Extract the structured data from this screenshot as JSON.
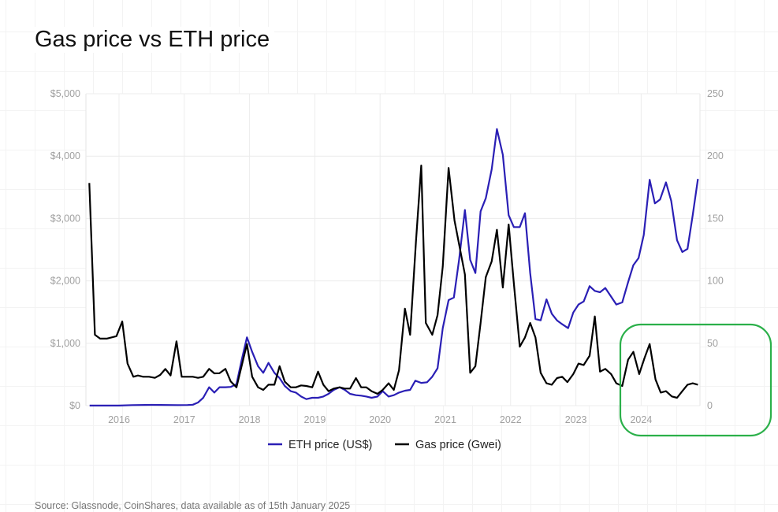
{
  "chart_data": {
    "type": "line",
    "title": "Gas price vs ETH price",
    "source": "Source: Glassnode, CoinShares, data available as of 15th January 2025",
    "x_ticks": [
      "2016",
      "2017",
      "2018",
      "2019",
      "2020",
      "2021",
      "2022",
      "2023",
      "2024"
    ],
    "y_left": {
      "label": "ETH price (US$)",
      "range": [
        0,
        5000
      ],
      "ticks": [
        "$0",
        "$1,000",
        "$2,000",
        "$3,000",
        "$4,000",
        "$5,000"
      ]
    },
    "y_right": {
      "label": "Gas price (Gwei)",
      "range": [
        0,
        250
      ],
      "ticks": [
        "0",
        "50",
        "100",
        "150",
        "200",
        "250"
      ]
    },
    "grid": true,
    "legend": {
      "position": "bottom",
      "items": [
        "ETH price (US$)",
        "Gas price (Gwei)"
      ]
    },
    "annotation": {
      "type": "highlight-box",
      "region": "2024 gas price",
      "color": "#2bb04a"
    },
    "series": [
      {
        "name": "ETH price (US$)",
        "axis": "left",
        "color": "#2a1fb5",
        "points": [
          [
            2015.55,
            1
          ],
          [
            2015.8,
            1
          ],
          [
            2016.0,
            1
          ],
          [
            2016.2,
            9
          ],
          [
            2016.5,
            12
          ],
          [
            2016.9,
            9
          ],
          [
            2017.05,
            10
          ],
          [
            2017.13,
            15
          ],
          [
            2017.21,
            50
          ],
          [
            2017.29,
            126
          ],
          [
            2017.38,
            295
          ],
          [
            2017.46,
            210
          ],
          [
            2017.54,
            295
          ],
          [
            2017.63,
            295
          ],
          [
            2017.71,
            300
          ],
          [
            2017.8,
            345
          ],
          [
            2017.88,
            737
          ],
          [
            2017.96,
            1095
          ],
          [
            2018.04,
            863
          ],
          [
            2018.13,
            632
          ],
          [
            2018.21,
            526
          ],
          [
            2018.29,
            686
          ],
          [
            2018.38,
            526
          ],
          [
            2018.46,
            442
          ],
          [
            2018.54,
            316
          ],
          [
            2018.63,
            232
          ],
          [
            2018.71,
            210
          ],
          [
            2018.79,
            147
          ],
          [
            2018.87,
            105
          ],
          [
            2018.96,
            126
          ],
          [
            2019.05,
            126
          ],
          [
            2019.13,
            147
          ],
          [
            2019.21,
            189
          ],
          [
            2019.29,
            252
          ],
          [
            2019.38,
            295
          ],
          [
            2019.46,
            252
          ],
          [
            2019.54,
            189
          ],
          [
            2019.63,
            168
          ],
          [
            2019.71,
            160
          ],
          [
            2019.79,
            147
          ],
          [
            2019.87,
            126
          ],
          [
            2019.96,
            147
          ],
          [
            2020.04,
            232
          ],
          [
            2020.13,
            147
          ],
          [
            2020.21,
            168
          ],
          [
            2020.29,
            210
          ],
          [
            2020.38,
            240
          ],
          [
            2020.46,
            252
          ],
          [
            2020.54,
            400
          ],
          [
            2020.63,
            365
          ],
          [
            2020.72,
            375
          ],
          [
            2020.8,
            465
          ],
          [
            2020.88,
            600
          ],
          [
            2020.96,
            1242
          ],
          [
            2021.05,
            1692
          ],
          [
            2021.13,
            1734
          ],
          [
            2021.21,
            2337
          ],
          [
            2021.3,
            3136
          ],
          [
            2021.38,
            2337
          ],
          [
            2021.46,
            2126
          ],
          [
            2021.54,
            3115
          ],
          [
            2021.62,
            3326
          ],
          [
            2021.71,
            3789
          ],
          [
            2021.79,
            4433
          ],
          [
            2021.88,
            4021
          ],
          [
            2021.97,
            3053
          ],
          [
            2022.05,
            2863
          ],
          [
            2022.14,
            2863
          ],
          [
            2022.22,
            3086
          ],
          [
            2022.3,
            2126
          ],
          [
            2022.38,
            1389
          ],
          [
            2022.46,
            1368
          ],
          [
            2022.55,
            1705
          ],
          [
            2022.63,
            1473
          ],
          [
            2022.71,
            1368
          ],
          [
            2022.79,
            1305
          ],
          [
            2022.88,
            1242
          ],
          [
            2022.96,
            1494
          ],
          [
            2023.04,
            1621
          ],
          [
            2023.12,
            1671
          ],
          [
            2023.21,
            1916
          ],
          [
            2023.29,
            1840
          ],
          [
            2023.37,
            1818
          ],
          [
            2023.45,
            1886
          ],
          [
            2023.54,
            1747
          ],
          [
            2023.62,
            1621
          ],
          [
            2023.71,
            1655
          ],
          [
            2023.8,
            1979
          ],
          [
            2023.88,
            2253
          ],
          [
            2023.96,
            2366
          ],
          [
            2024.04,
            2737
          ],
          [
            2024.13,
            3621
          ],
          [
            2024.21,
            3242
          ],
          [
            2024.29,
            3305
          ],
          [
            2024.38,
            3579
          ],
          [
            2024.46,
            3284
          ],
          [
            2024.55,
            2653
          ],
          [
            2024.63,
            2463
          ],
          [
            2024.71,
            2514
          ],
          [
            2024.79,
            3053
          ],
          [
            2024.87,
            3634
          ]
        ]
      },
      {
        "name": "Gas price (Gwei)",
        "axis": "right",
        "color": "#000000",
        "points": [
          [
            2015.545,
            178.5
          ],
          [
            2015.63,
            56.8
          ],
          [
            2015.71,
            53.7
          ],
          [
            2015.81,
            53.7
          ],
          [
            2015.96,
            55.7
          ],
          [
            2016.05,
            67.4
          ],
          [
            2016.13,
            33.7
          ],
          [
            2016.22,
            23.2
          ],
          [
            2016.29,
            24.2
          ],
          [
            2016.37,
            23.2
          ],
          [
            2016.46,
            23.2
          ],
          [
            2016.55,
            22.3
          ],
          [
            2016.63,
            24.6
          ],
          [
            2016.71,
            29.4
          ],
          [
            2016.79,
            24.2
          ],
          [
            2016.88,
            51.6
          ],
          [
            2016.96,
            23.2
          ],
          [
            2017.05,
            23.2
          ],
          [
            2017.13,
            23.2
          ],
          [
            2017.21,
            22.3
          ],
          [
            2017.29,
            23.2
          ],
          [
            2017.38,
            29.5
          ],
          [
            2017.46,
            25.9
          ],
          [
            2017.54,
            26
          ],
          [
            2017.63,
            29.5
          ],
          [
            2017.71,
            19.5
          ],
          [
            2017.8,
            14.7
          ],
          [
            2017.96,
            49.4
          ],
          [
            2018.04,
            23.2
          ],
          [
            2018.13,
            14.7
          ],
          [
            2018.21,
            12.6
          ],
          [
            2018.29,
            16.8
          ],
          [
            2018.38,
            16.8
          ],
          [
            2018.46,
            31.6
          ],
          [
            2018.54,
            19.2
          ],
          [
            2018.63,
            14.7
          ],
          [
            2018.71,
            14.7
          ],
          [
            2018.79,
            16.2
          ],
          [
            2018.87,
            15.8
          ],
          [
            2018.96,
            14.7
          ],
          [
            2019.05,
            27.3
          ],
          [
            2019.13,
            16.8
          ],
          [
            2019.21,
            11.6
          ],
          [
            2019.29,
            13.7
          ],
          [
            2019.38,
            14.7
          ],
          [
            2019.46,
            13.7
          ],
          [
            2019.54,
            13.7
          ],
          [
            2019.63,
            22.1
          ],
          [
            2019.71,
            14.7
          ],
          [
            2019.79,
            14.7
          ],
          [
            2019.87,
            11.6
          ],
          [
            2019.96,
            9.5
          ],
          [
            2020.04,
            12.6
          ],
          [
            2020.13,
            17.9
          ],
          [
            2020.21,
            12.6
          ],
          [
            2020.29,
            28.4
          ],
          [
            2020.38,
            77.8
          ],
          [
            2020.46,
            56.8
          ],
          [
            2020.55,
            131.5
          ],
          [
            2020.63,
            192.5
          ],
          [
            2020.7,
            66.3
          ],
          [
            2020.8,
            56.8
          ],
          [
            2020.88,
            72.6
          ],
          [
            2020.96,
            111.5
          ],
          [
            2021.05,
            190.5
          ],
          [
            2021.14,
            148.4
          ],
          [
            2021.3,
            105.2
          ],
          [
            2021.38,
            26.3
          ],
          [
            2021.46,
            31.6
          ],
          [
            2021.54,
            66.3
          ],
          [
            2021.62,
            103.1
          ],
          [
            2021.71,
            115.7
          ],
          [
            2021.79,
            141
          ],
          [
            2021.88,
            94.7
          ],
          [
            2021.97,
            145.2
          ],
          [
            2022.05,
            97.9
          ],
          [
            2022.14,
            47.3
          ],
          [
            2022.22,
            54.7
          ],
          [
            2022.3,
            66.3
          ],
          [
            2022.38,
            54.7
          ],
          [
            2022.46,
            26.3
          ],
          [
            2022.55,
            17.9
          ],
          [
            2022.63,
            16.8
          ],
          [
            2022.71,
            22.1
          ],
          [
            2022.79,
            23.2
          ],
          [
            2022.87,
            18.9
          ],
          [
            2022.96,
            25.3
          ],
          [
            2023.04,
            33.7
          ],
          [
            2023.12,
            32.6
          ],
          [
            2023.21,
            40
          ],
          [
            2023.29,
            71.5
          ],
          [
            2023.37,
            27.3
          ],
          [
            2023.45,
            29.5
          ],
          [
            2023.54,
            25.3
          ],
          [
            2023.62,
            17.9
          ],
          [
            2023.71,
            15.8
          ],
          [
            2023.8,
            36.8
          ],
          [
            2023.88,
            43.1
          ],
          [
            2023.97,
            25.3
          ],
          [
            2024.05,
            37.9
          ],
          [
            2024.13,
            49.4
          ],
          [
            2024.22,
            21
          ],
          [
            2024.3,
            10.5
          ],
          [
            2024.38,
            11.6
          ],
          [
            2024.47,
            7.4
          ],
          [
            2024.55,
            6.3
          ],
          [
            2024.63,
            11.6
          ],
          [
            2024.71,
            16.8
          ],
          [
            2024.79,
            17.9
          ],
          [
            2024.87,
            16.8
          ]
        ]
      }
    ]
  }
}
